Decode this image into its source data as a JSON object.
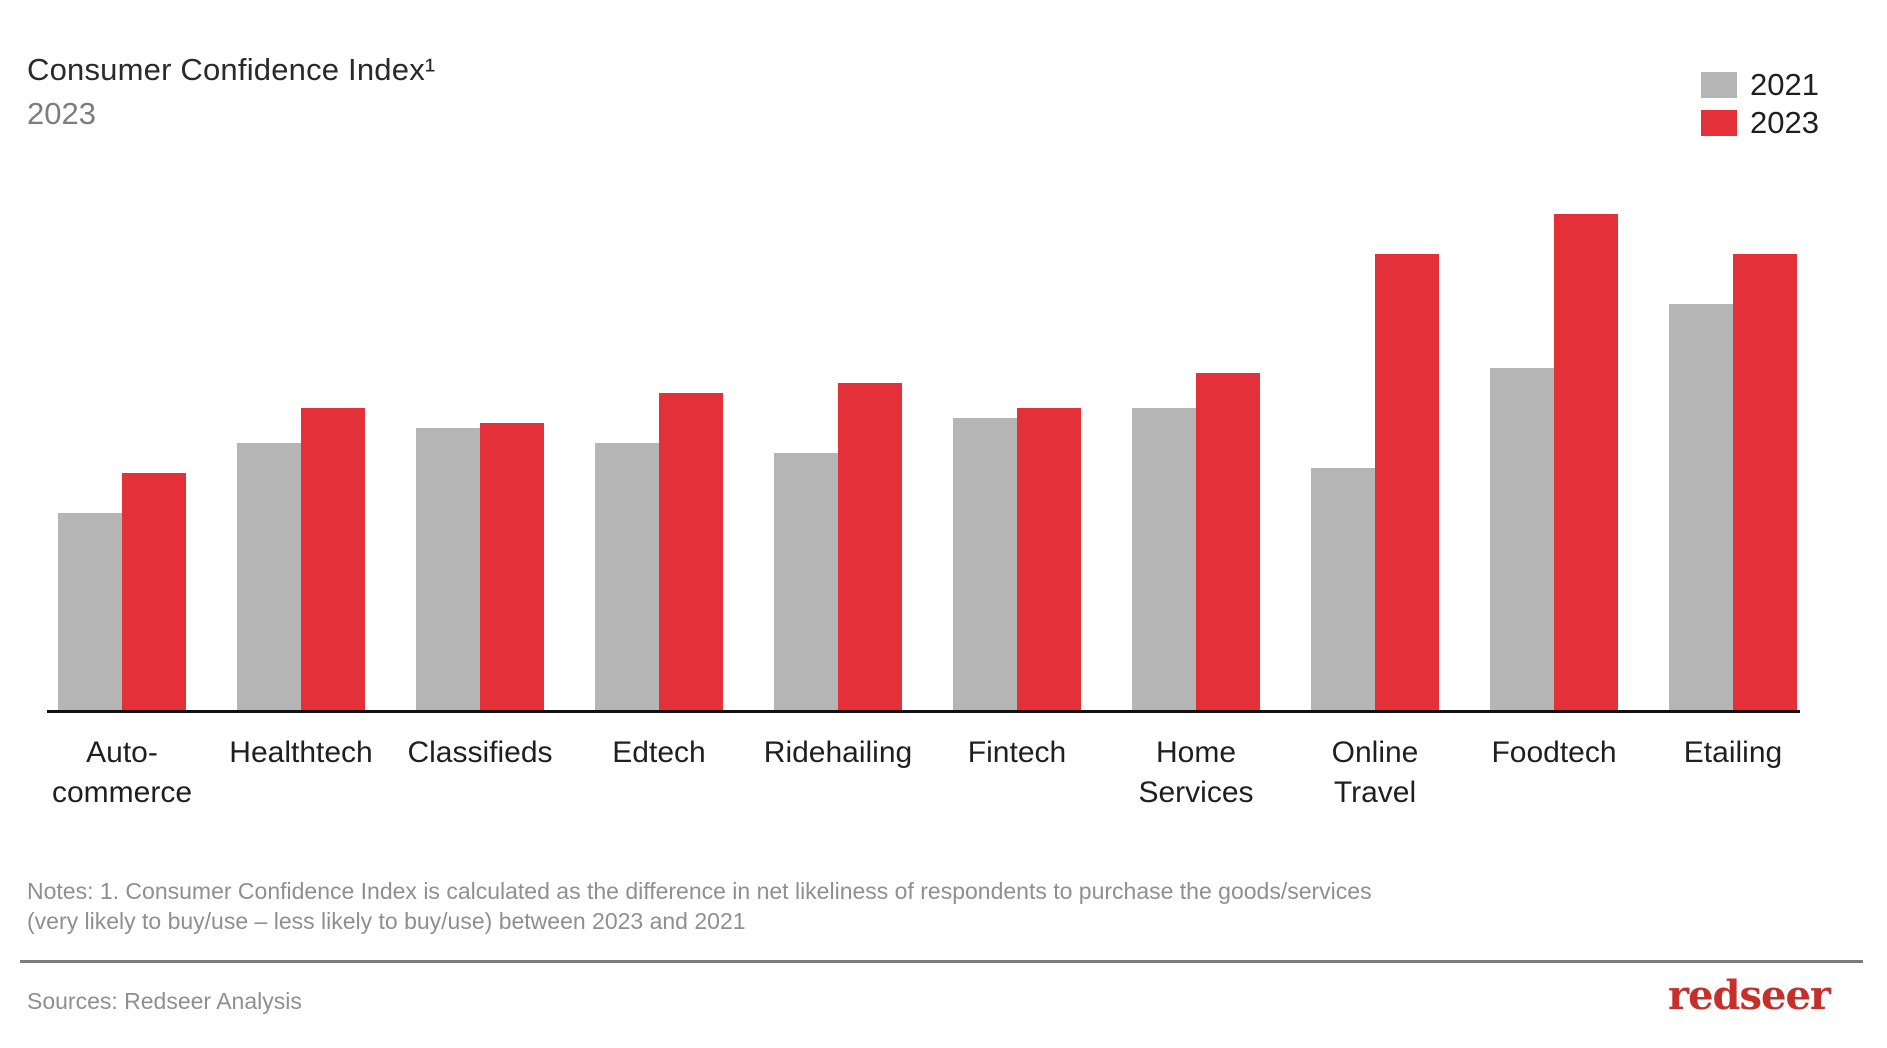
{
  "header": {
    "title": "Consumer Confidence Index¹",
    "subtitle": "2023"
  },
  "legend": {
    "items": [
      {
        "label": "2021",
        "color": "#b5b5b5"
      },
      {
        "label": "2023",
        "color": "#e43038"
      }
    ]
  },
  "chart_data": {
    "type": "bar",
    "title": "Consumer Confidence Index¹",
    "subtitle": "2023",
    "categories": [
      "Auto-commerce",
      "Healthtech",
      "Classifieds",
      "Edtech",
      "Ridehailing",
      "Fintech",
      "Home Services",
      "Online Travel",
      "Foodtech",
      "Etailing"
    ],
    "tick_labels": [
      "Auto-\ncommerce",
      "Healthtech",
      "Classifieds",
      "Edtech",
      "Ridehailing",
      "Fintech",
      "Home\nServices",
      "Online\nTravel",
      "Foodtech",
      "Etailing"
    ],
    "series": [
      {
        "name": "2021",
        "color": "#b5b5b5",
        "values": [
          40,
          54,
          57,
          54,
          52,
          59,
          61,
          49,
          69,
          82
        ]
      },
      {
        "name": "2023",
        "color": "#e43038",
        "values": [
          48,
          61,
          58,
          64,
          66,
          61,
          68,
          92,
          100,
          92
        ]
      }
    ],
    "xlabel": "",
    "ylabel": "",
    "ylim": [
      0,
      105
    ],
    "grid": false,
    "axis_values_shown": false,
    "value_scale": "relative index; no numeric axis in chart, values estimated from bar heights with tallest bar (Foodtech 2023) = 100",
    "legend_position": "top-right"
  },
  "notes": {
    "line1": "Notes: 1. Consumer Confidence Index is calculated as the difference in net likeliness of respondents to purchase the goods/services",
    "line2": "(very likely to buy/use – less likely to buy/use) between 2023 and 2021"
  },
  "footer": {
    "sources": "Sources: Redseer Analysis",
    "logo": "redseer"
  }
}
